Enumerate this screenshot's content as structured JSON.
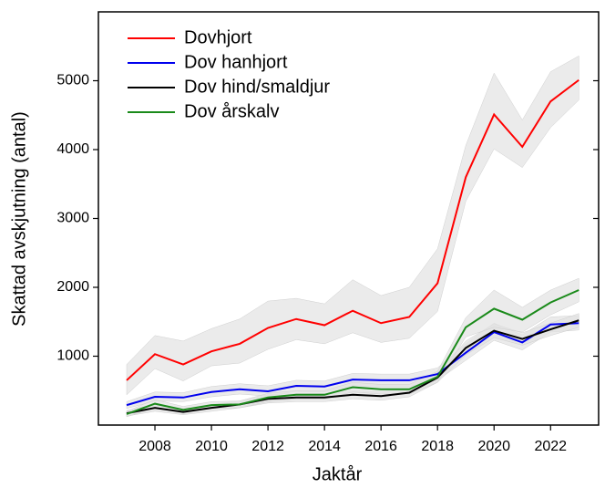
{
  "chart_data": {
    "type": "line",
    "x_label": "Jaktår",
    "y_label": "Skattad avskjutning (antal)",
    "x": [
      2007,
      2008,
      2009,
      2010,
      2011,
      2012,
      2013,
      2014,
      2015,
      2016,
      2017,
      2018,
      2019,
      2020,
      2021,
      2022,
      2023
    ],
    "xlim": [
      2006,
      2023.7
    ],
    "xticks": [
      2008,
      2010,
      2012,
      2014,
      2016,
      2018,
      2020,
      2022
    ],
    "ylim": [
      0,
      6000
    ],
    "yticks": [
      1000,
      2000,
      3000,
      4000,
      5000
    ],
    "legend": "upper left",
    "band_color": "#e3e3e3",
    "series": [
      {
        "name": "Dovhjort",
        "color": "#ff0000",
        "values": [
          650,
          1030,
          880,
          1070,
          1180,
          1410,
          1540,
          1450,
          1660,
          1480,
          1570,
          2060,
          3600,
          4510,
          4040,
          4700,
          5010
        ],
        "upper": [
          880,
          1300,
          1220,
          1400,
          1540,
          1800,
          1840,
          1760,
          2110,
          1880,
          2000,
          2560,
          4060,
          5110,
          4430,
          5130,
          5360
        ],
        "lower": [
          440,
          820,
          640,
          860,
          900,
          1100,
          1240,
          1180,
          1340,
          1200,
          1260,
          1650,
          3250,
          4010,
          3740,
          4320,
          4720
        ]
      },
      {
        "name": "Dov hanhjort",
        "color": "#0000ee",
        "values": [
          290,
          410,
          400,
          480,
          520,
          490,
          570,
          560,
          660,
          650,
          650,
          740,
          1050,
          1350,
          1200,
          1460,
          1480
        ],
        "upper": [
          340,
          480,
          470,
          560,
          600,
          570,
          650,
          640,
          750,
          740,
          740,
          830,
          1180,
          1480,
          1310,
          1570,
          1590
        ],
        "lower": [
          240,
          350,
          340,
          410,
          450,
          420,
          490,
          480,
          570,
          560,
          560,
          650,
          940,
          1230,
          1090,
          1350,
          1380
        ]
      },
      {
        "name": "Dov hind/smaldjur",
        "color": "#000000",
        "values": [
          170,
          250,
          190,
          250,
          300,
          380,
          400,
          400,
          440,
          420,
          470,
          690,
          1120,
          1370,
          1250,
          1390,
          1520
        ],
        "upper": [
          210,
          300,
          240,
          300,
          350,
          440,
          460,
          460,
          500,
          480,
          530,
          760,
          1220,
          1470,
          1340,
          1480,
          1620
        ],
        "lower": [
          130,
          200,
          150,
          200,
          250,
          320,
          340,
          340,
          380,
          360,
          410,
          620,
          1020,
          1270,
          1160,
          1300,
          1420
        ]
      },
      {
        "name": "Dov årskalv",
        "color": "#1a8a1a",
        "values": [
          160,
          310,
          220,
          290,
          300,
          400,
          440,
          440,
          550,
          520,
          520,
          700,
          1420,
          1690,
          1530,
          1780,
          1960
        ],
        "upper": [
          200,
          370,
          270,
          340,
          350,
          460,
          500,
          500,
          620,
          590,
          590,
          780,
          1560,
          1960,
          1710,
          1960,
          2130
        ],
        "lower": [
          120,
          250,
          170,
          240,
          250,
          340,
          380,
          380,
          480,
          450,
          450,
          620,
          1280,
          1420,
          1350,
          1600,
          1790
        ]
      }
    ]
  }
}
